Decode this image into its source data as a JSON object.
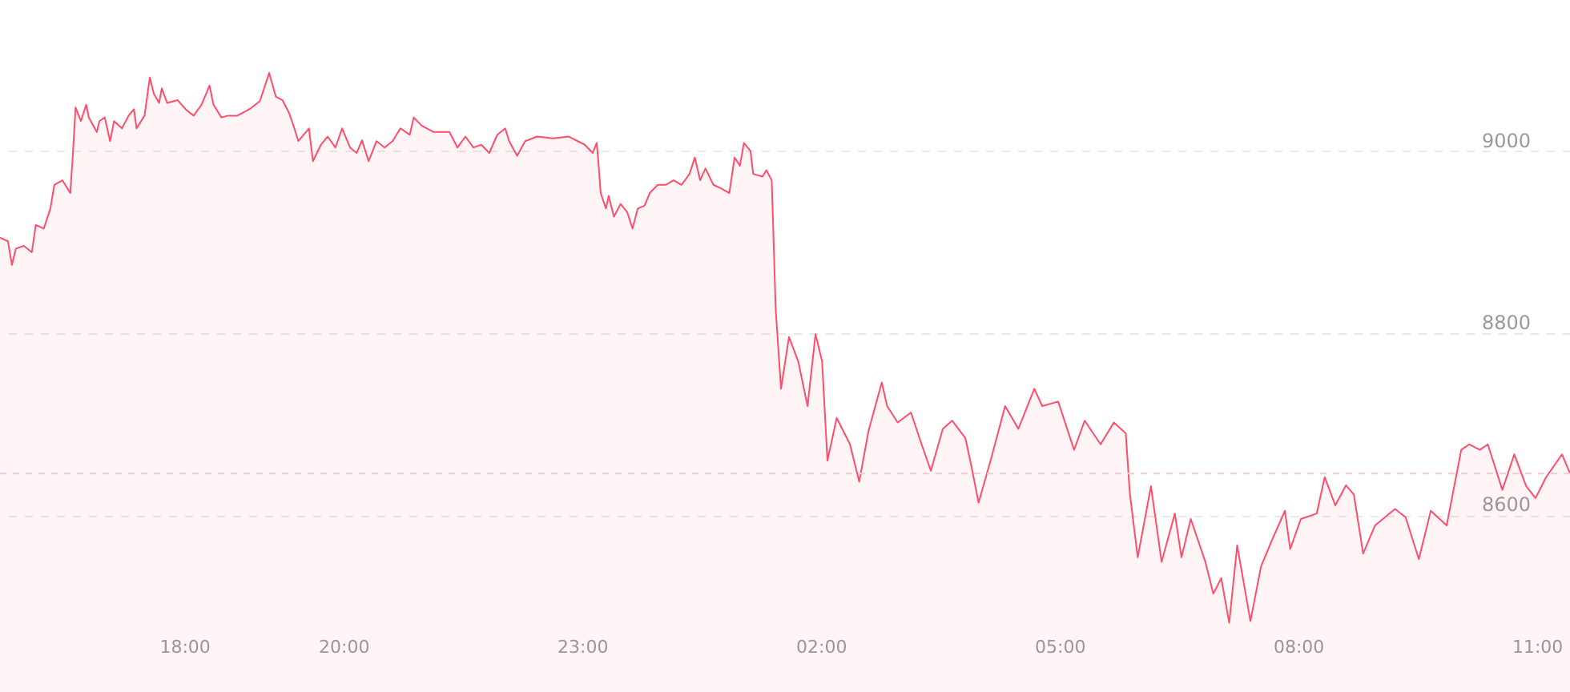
{
  "chart_data": {
    "type": "area",
    "x": [
      "2000-01-01T15:41",
      "2000-01-01T15:47",
      "2000-01-01T15:50",
      "2000-01-01T15:53",
      "2000-01-01T15:59",
      "2000-01-01T16:05",
      "2000-01-01T16:08",
      "2000-01-01T16:14",
      "2000-01-01T16:19",
      "2000-01-01T16:22",
      "2000-01-01T16:28",
      "2000-01-01T16:34",
      "2000-01-01T16:36",
      "2000-01-01T16:38",
      "2000-01-01T16:42",
      "2000-01-01T16:46",
      "2000-01-01T16:48",
      "2000-01-01T16:54",
      "2000-01-01T16:56",
      "2000-01-01T17:00",
      "2000-01-01T17:04",
      "2000-01-01T17:07",
      "2000-01-01T17:13",
      "2000-01-01T17:18",
      "2000-01-01T17:22",
      "2000-01-01T17:24",
      "2000-01-01T17:30",
      "2000-01-01T17:34",
      "2000-01-01T17:37",
      "2000-01-01T17:41",
      "2000-01-01T17:43",
      "2000-01-01T17:47",
      "2000-01-01T17:55",
      "2000-01-01T18:01",
      "2000-01-01T18:07",
      "2000-01-01T18:13",
      "2000-01-01T18:19",
      "2000-01-01T18:22",
      "2000-01-01T18:28",
      "2000-01-01T18:33",
      "2000-01-01T18:40",
      "2000-01-01T18:49",
      "2000-01-01T18:57",
      "2000-01-01T19:04",
      "2000-01-01T19:09",
      "2000-01-01T19:14",
      "2000-01-01T19:19",
      "2000-01-01T19:23",
      "2000-01-01T19:26",
      "2000-01-01T19:34",
      "2000-01-01T19:37",
      "2000-01-01T19:43",
      "2000-01-01T19:48",
      "2000-01-01T19:54",
      "2000-01-01T19:59",
      "2000-01-01T20:05",
      "2000-01-01T20:10",
      "2000-01-01T20:14",
      "2000-01-01T20:19",
      "2000-01-01T20:25",
      "2000-01-01T20:31",
      "2000-01-01T20:37",
      "2000-01-01T20:43",
      "2000-01-01T20:50",
      "2000-01-01T20:53",
      "2000-01-01T20:59",
      "2000-01-01T21:08",
      "2000-01-01T21:20",
      "2000-01-01T21:26",
      "2000-01-01T21:32",
      "2000-01-01T21:38",
      "2000-01-01T21:44",
      "2000-01-01T21:50",
      "2000-01-01T21:56",
      "2000-01-01T22:02",
      "2000-01-01T22:05",
      "2000-01-01T22:11",
      "2000-01-01T22:17",
      "2000-01-01T22:26",
      "2000-01-01T22:38",
      "2000-01-01T22:50",
      "2000-01-01T23:02",
      "2000-01-01T23:08",
      "2000-01-01T23:11",
      "2000-01-01T23:12",
      "2000-01-01T23:14",
      "2000-01-01T23:18",
      "2000-01-01T23:20",
      "2000-01-01T23:24",
      "2000-01-01T23:29",
      "2000-01-01T23:34",
      "2000-01-01T23:38",
      "2000-01-01T23:42",
      "2000-01-01T23:47",
      "2000-01-01T23:51",
      "2000-01-01T23:57",
      "2000-01-02T00:03",
      "2000-01-02T00:09",
      "2000-01-02T00:15",
      "2000-01-02T00:21",
      "2000-01-02T00:25",
      "2000-01-02T00:29",
      "2000-01-02T00:33",
      "2000-01-02T00:39",
      "2000-01-02T00:45",
      "2000-01-02T00:51",
      "2000-01-02T00:55",
      "2000-01-02T00:59",
      "2000-01-02T01:02",
      "2000-01-02T01:07",
      "2000-01-02T01:09",
      "2000-01-02T01:16",
      "2000-01-02T01:19",
      "2000-01-02T01:23",
      "2000-01-02T01:26",
      "2000-01-02T01:30",
      "2000-01-02T01:36",
      "2000-01-02T01:43",
      "2000-01-02T01:50",
      "2000-01-02T01:56",
      "2000-01-02T02:01",
      "2000-01-02T02:05",
      "2000-01-02T02:12",
      "2000-01-02T02:22",
      "2000-01-02T02:29",
      "2000-01-02T02:36",
      "2000-01-02T02:46",
      "2000-01-02T02:50",
      "2000-01-02T02:58",
      "2000-01-02T03:08",
      "2000-01-02T03:16",
      "2000-01-02T03:23",
      "2000-01-02T03:32",
      "2000-01-02T03:39",
      "2000-01-02T03:49",
      "2000-01-02T03:53",
      "2000-01-02T03:59",
      "2000-01-02T04:08",
      "2000-01-02T04:19",
      "2000-01-02T04:29",
      "2000-01-02T04:41",
      "2000-01-02T04:47",
      "2000-01-02T04:59",
      "2000-01-02T05:11",
      "2000-01-02T05:19",
      "2000-01-02T05:31",
      "2000-01-02T05:41",
      "2000-01-02T05:50",
      "2000-01-02T05:53",
      "2000-01-02T05:59",
      "2000-01-02T06:09",
      "2000-01-02T06:17",
      "2000-01-02T06:27",
      "2000-01-02T06:32",
      "2000-01-02T06:39",
      "2000-01-02T06:50",
      "2000-01-02T06:56",
      "2000-01-02T07:02",
      "2000-01-02T07:08",
      "2000-01-02T07:14",
      "2000-01-02T07:24",
      "2000-01-02T07:32",
      "2000-01-02T07:40",
      "2000-01-02T07:50",
      "2000-01-02T07:54",
      "2000-01-02T08:02",
      "2000-01-02T08:14",
      "2000-01-02T08:20",
      "2000-01-02T08:28",
      "2000-01-02T08:36",
      "2000-01-02T08:42",
      "2000-01-02T08:49",
      "2000-01-02T08:58",
      "2000-01-02T09:13",
      "2000-01-02T09:21",
      "2000-01-02T09:31",
      "2000-01-02T09:40",
      "2000-01-02T09:52",
      "2000-01-02T10:03",
      "2000-01-02T10:09",
      "2000-01-02T10:17",
      "2000-01-02T10:23",
      "2000-01-02T10:34",
      "2000-01-02T10:43",
      "2000-01-02T10:52",
      "2000-01-02T10:59",
      "2000-01-02T11:07",
      "2000-01-02T11:19",
      "2000-01-02T11:25"
    ],
    "series": [
      {
        "color": "#ff4d6a",
        "values": [
          8905,
          8901,
          8875,
          8893,
          8896,
          8889,
          8919,
          8915,
          8937,
          8963,
          8968,
          8954,
          8998,
          9048,
          9033,
          9051,
          9037,
          9021,
          9033,
          9037,
          9011,
          9033,
          9025,
          9039,
          9046,
          9025,
          9039,
          9081,
          9063,
          9053,
          9069,
          9053,
          9056,
          9046,
          9039,
          9051,
          9072,
          9051,
          9037,
          9039,
          9039,
          9046,
          9055,
          9086,
          9060,
          9056,
          9042,
          9025,
          9011,
          9025,
          8989,
          9007,
          9016,
          9004,
          9025,
          9004,
          8998,
          9012,
          8989,
          9011,
          9004,
          9011,
          9025,
          9018,
          9037,
          9028,
          9021,
          9021,
          9004,
          9016,
          9004,
          9007,
          8998,
          9018,
          9025,
          9011,
          8995,
          9011,
          9016,
          9014,
          9016,
          9007,
          8998,
          9009,
          8993,
          8954,
          8937,
          8951,
          8928,
          8942,
          8933,
          8915,
          8937,
          8940,
          8954,
          8963,
          8963,
          8968,
          8963,
          8975,
          8993,
          8968,
          8981,
          8963,
          8959,
          8954,
          8993,
          8984,
          9009,
          9000,
          8975,
          8972,
          8979,
          8968,
          8826,
          8739,
          8796,
          8769,
          8720,
          8799,
          8769,
          8660,
          8707,
          8678,
          8637,
          8693,
          8746,
          8720,
          8702,
          8713,
          8678,
          8649,
          8695,
          8704,
          8685,
          8658,
          8614,
          8660,
          8720,
          8695,
          8739,
          8720,
          8725,
          8672,
          8704,
          8678,
          8702,
          8690,
          8625,
          8554,
          8632,
          8549,
          8602,
          8554,
          8596,
          8549,
          8514,
          8531,
          8482,
          8567,
          8484,
          8544,
          8572,
          8605,
          8563,
          8596,
          8602,
          8642,
          8611,
          8633,
          8623,
          8558,
          8589,
          8607,
          8598,
          8552,
          8605,
          8589,
          8672,
          8678,
          8672,
          8678,
          8628,
          8667,
          8632,
          8619,
          8642,
          8667,
          8646
        ]
      }
    ],
    "xlim": [
      "2000-01-01T15:41",
      "2000-01-02T11:25"
    ],
    "ylim": [
      8406,
      9166
    ],
    "xticks": [
      {
        "value": "2000-01-01T18:00",
        "label": "18:00"
      },
      {
        "value": "2000-01-01T20:00",
        "label": "20:00"
      },
      {
        "value": "2000-01-01T23:00",
        "label": "23:00"
      },
      {
        "value": "2000-01-02T02:00",
        "label": "02:00"
      },
      {
        "value": "2000-01-02T05:00",
        "label": "05:00"
      },
      {
        "value": "2000-01-02T08:00",
        "label": "08:00"
      },
      {
        "value": "2000-01-02T11:00",
        "label": "11:00"
      }
    ],
    "yticks": [
      8600,
      8800,
      9000
    ],
    "grid": "y",
    "ref_lines": [
      {
        "axis": "y",
        "value": 8646,
        "color": "#f8c9d2",
        "line_style": "dashed"
      }
    ]
  }
}
